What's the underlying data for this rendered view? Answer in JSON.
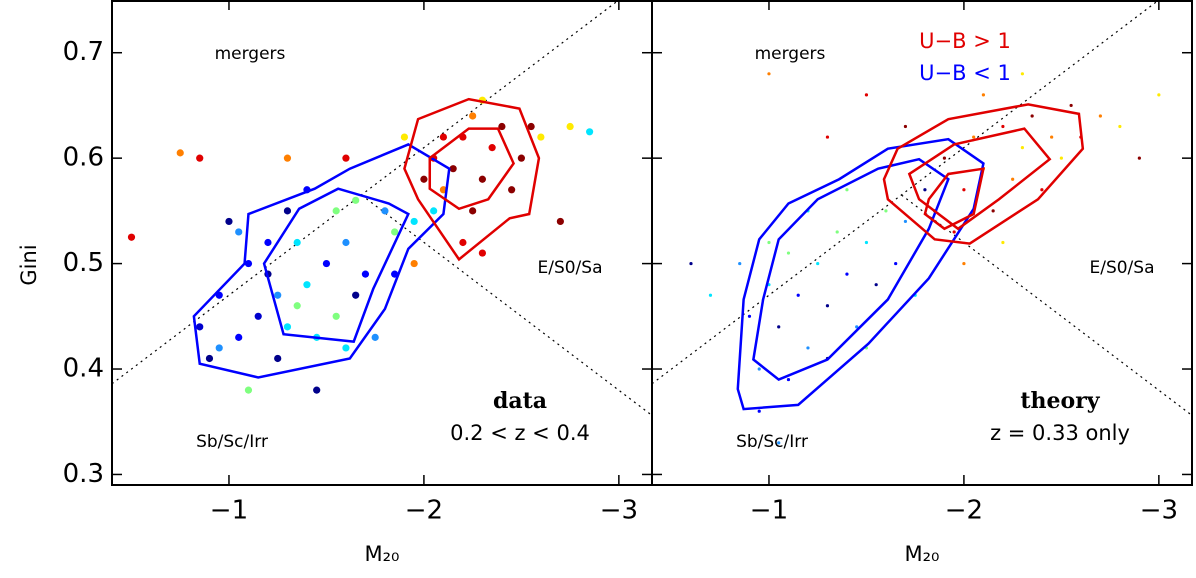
{
  "chart_data": [
    {
      "type": "scatter",
      "ylabel": "Gini",
      "xlabel": "M₂₀",
      "xlim": [
        -0.4,
        -3.17
      ],
      "ylim": [
        0.29,
        0.75
      ],
      "xticks": [
        {
          "value": -1,
          "label": "−1"
        },
        {
          "value": -2,
          "label": "−2"
        },
        {
          "value": -3,
          "label": "−3"
        }
      ],
      "yticks": [
        0.3,
        0.4,
        0.5,
        0.6,
        0.7
      ],
      "annotations": [
        "mergers",
        "E/S0/Sa",
        "Sb/Sc/Irr",
        "data",
        "0.2 < z < 0.4"
      ],
      "series": [
        {
          "type": "line",
          "color": "#000000",
          "dash": true,
          "x": [
            -0.4,
            -3.0
          ],
          "y": [
            0.386,
            0.75
          ]
        },
        {
          "type": "line",
          "color": "#000000",
          "dash": true,
          "x": [
            -1.68,
            -3.17
          ],
          "y": [
            0.565,
            0.356
          ]
        },
        {
          "type": "scatter",
          "x": [
            -0.85,
            -0.9,
            -0.95,
            -1.05,
            -1.0,
            -1.1,
            -1.2,
            -1.25,
            -1.3,
            -1.35,
            -1.4,
            -1.45,
            -1.5,
            -1.55,
            -1.6,
            -1.65,
            -1.7,
            -1.75,
            -1.4,
            -1.3,
            -1.55,
            -1.8,
            -1.85,
            -1.2,
            -1.05,
            -1.15,
            -1.25,
            -1.45,
            -1.6,
            -1.95,
            -0.95,
            -1.35,
            -1.1,
            -1.65,
            -1.85,
            -2.0,
            -2.05,
            -2.1,
            -2.15,
            -2.2,
            -2.25,
            -2.3,
            -2.35,
            -2.4,
            -2.45,
            -2.5,
            -2.55,
            -2.25,
            -2.6,
            -2.75,
            -2.85,
            -2.7,
            -2.1,
            -1.95,
            -2.2,
            -2.05,
            -1.6,
            -1.3,
            -0.85,
            -0.75,
            -0.5,
            -2.3,
            -1.9,
            -2.3
          ],
          "y": [
            0.44,
            0.41,
            0.42,
            0.43,
            0.54,
            0.5,
            0.49,
            0.47,
            0.44,
            0.46,
            0.48,
            0.43,
            0.5,
            0.45,
            0.52,
            0.47,
            0.49,
            0.43,
            0.57,
            0.55,
            0.55,
            0.55,
            0.53,
            0.52,
            0.53,
            0.45,
            0.41,
            0.38,
            0.42,
            0.54,
            0.47,
            0.52,
            0.38,
            0.56,
            0.49,
            0.58,
            0.6,
            0.57,
            0.59,
            0.62,
            0.55,
            0.58,
            0.61,
            0.63,
            0.57,
            0.6,
            0.63,
            0.64,
            0.62,
            0.63,
            0.625,
            0.54,
            0.62,
            0.5,
            0.52,
            0.55,
            0.6,
            0.6,
            0.6,
            0.605,
            0.525,
            0.51,
            0.62,
            0.655
          ],
          "colors": [
            "#0000cd",
            "#00008b",
            "#1e90ff",
            "#0000ff",
            "#00008b",
            "#0000ff",
            "#00008b",
            "#1e90ff",
            "#00e5ff",
            "#7fff7f",
            "#00e5ff",
            "#00e5ff",
            "#0000ff",
            "#7fff7f",
            "#1e90ff",
            "#00008b",
            "#0000ff",
            "#1e90ff",
            "#0000ff",
            "#00008b",
            "#7fff7f",
            "#1e90ff",
            "#7fff7f",
            "#0000ff",
            "#1e90ff",
            "#0000cd",
            "#00008b",
            "#00008b",
            "#00e5ff",
            "#00e5ff",
            "#0000ff",
            "#00e5ff",
            "#7fff7f",
            "#7fff7f",
            "#0000ff",
            "#8b0000",
            "#e00000",
            "#ff7f00",
            "#8b0000",
            "#e00000",
            "#8b0000",
            "#8b0000",
            "#e00000",
            "#8b0000",
            "#8b0000",
            "#8b0000",
            "#8b0000",
            "#ff7f00",
            "#ffea00",
            "#ffea00",
            "#00e5ff",
            "#8b0000",
            "#e00000",
            "#ff7f00",
            "#e00000",
            "#00e5ff",
            "#e00000",
            "#ff7f00",
            "#e00000",
            "#ff7f00",
            "#e00000",
            "#e00000",
            "#ffea00",
            "#ffea00"
          ]
        },
        {
          "type": "line",
          "color": "#0000ff",
          "closed": true,
          "x": [
            -0.82,
            -0.85,
            -1.15,
            -1.62,
            -1.8,
            -1.92,
            -2.1,
            -2.13,
            -1.92,
            -1.62,
            -1.44,
            -1.1,
            -1.08
          ],
          "y": [
            0.45,
            0.405,
            0.392,
            0.41,
            0.457,
            0.514,
            0.547,
            0.59,
            0.613,
            0.59,
            0.571,
            0.547,
            0.5
          ]
        },
        {
          "type": "line",
          "color": "#0000ff",
          "closed": true,
          "x": [
            -1.18,
            -1.28,
            -1.64,
            -1.74,
            -1.92,
            -1.82,
            -1.56,
            -1.36
          ],
          "y": [
            0.5,
            0.433,
            0.426,
            0.476,
            0.547,
            0.557,
            0.571,
            0.552
          ]
        },
        {
          "type": "line",
          "color": "#e00000",
          "closed": true,
          "x": [
            -1.97,
            -2.23,
            -2.49,
            -2.59,
            -2.54,
            -2.44,
            -2.18,
            -1.97,
            -1.9
          ],
          "y": [
            0.637,
            0.656,
            0.647,
            0.6,
            0.547,
            0.543,
            0.504,
            0.561,
            0.59
          ]
        },
        {
          "type": "line",
          "color": "#e00000",
          "closed": true,
          "x": [
            -2.03,
            -2.23,
            -2.38,
            -2.46,
            -2.33,
            -2.18,
            -2.03
          ],
          "y": [
            0.6,
            0.628,
            0.628,
            0.595,
            0.561,
            0.552,
            0.571
          ]
        }
      ]
    },
    {
      "type": "scatter",
      "xlabel": "M₂₀",
      "xlim": [
        -0.4,
        -3.17
      ],
      "ylim": [
        0.29,
        0.75
      ],
      "xticks": [
        {
          "value": -1,
          "label": "−1"
        },
        {
          "value": -2,
          "label": "−2"
        },
        {
          "value": -3,
          "label": "−3"
        }
      ],
      "yticks": [
        0.3,
        0.4,
        0.5,
        0.6,
        0.7
      ],
      "annotations": [
        "mergers",
        "E/S0/Sa",
        "Sb/Sc/Irr",
        "theory",
        "z = 0.33 only",
        "U−B > 1",
        "U−B < 1"
      ],
      "series": [
        {
          "type": "line",
          "color": "#000000",
          "dash": true,
          "x": [
            -0.4,
            -3.0
          ],
          "y": [
            0.386,
            0.75
          ]
        },
        {
          "type": "line",
          "color": "#000000",
          "dash": true,
          "x": [
            -1.68,
            -3.17
          ],
          "y": [
            0.565,
            0.356
          ]
        },
        {
          "type": "scatter",
          "size": "small",
          "x": [
            -0.9,
            -0.95,
            -1.0,
            -1.05,
            -1.1,
            -1.15,
            -1.2,
            -1.25,
            -1.3,
            -1.35,
            -1.4,
            -1.45,
            -1.5,
            -1.55,
            -1.6,
            -1.65,
            -1.7,
            -1.75,
            -1.8,
            -1.0,
            -1.1,
            -0.85,
            -1.2,
            -1.3,
            -1.4,
            -0.95,
            -1.05,
            -0.7,
            -0.6,
            -1.5,
            -1.9,
            -2.0,
            -2.05,
            -2.1,
            -2.15,
            -2.2,
            -2.25,
            -2.3,
            -2.35,
            -2.4,
            -2.45,
            -2.5,
            -2.55,
            -2.6,
            -2.7,
            -2.8,
            -1.85,
            -1.95,
            -2.1,
            -2.3,
            -1.7,
            -1.5,
            -2.0,
            -2.2,
            -2.9,
            -1.3,
            -1.0,
            -3.0
          ],
          "y": [
            0.45,
            0.4,
            0.48,
            0.44,
            0.51,
            0.47,
            0.42,
            0.5,
            0.46,
            0.53,
            0.49,
            0.44,
            0.52,
            0.48,
            0.55,
            0.5,
            0.54,
            0.47,
            0.57,
            0.52,
            0.39,
            0.5,
            0.55,
            0.41,
            0.57,
            0.36,
            0.33,
            0.47,
            0.5,
            0.42,
            0.6,
            0.57,
            0.62,
            0.59,
            0.55,
            0.63,
            0.58,
            0.61,
            0.64,
            0.57,
            0.62,
            0.6,
            0.65,
            0.62,
            0.64,
            0.63,
            0.55,
            0.53,
            0.66,
            0.68,
            0.63,
            0.66,
            0.5,
            0.52,
            0.6,
            0.62,
            0.68,
            0.66
          ],
          "colors": [
            "#0000ff",
            "#1e90ff",
            "#00e5ff",
            "#00008b",
            "#7fff7f",
            "#0000ff",
            "#1e90ff",
            "#00e5ff",
            "#00008b",
            "#7fff7f",
            "#0000ff",
            "#1e90ff",
            "#00e5ff",
            "#00008b",
            "#7fff7f",
            "#0000ff",
            "#1e90ff",
            "#00e5ff",
            "#00008b",
            "#7fff7f",
            "#0000ff",
            "#1e90ff",
            "#00e5ff",
            "#00008b",
            "#7fff7f",
            "#0000ff",
            "#1e90ff",
            "#00e5ff",
            "#00008b",
            "#7fff7f",
            "#8b0000",
            "#e00000",
            "#ff7f00",
            "#ffea00",
            "#8b0000",
            "#e00000",
            "#ff7f00",
            "#ffea00",
            "#8b0000",
            "#e00000",
            "#ff7f00",
            "#ffea00",
            "#8b0000",
            "#e00000",
            "#ff7f00",
            "#ffea00",
            "#8b0000",
            "#e00000",
            "#ff7f00",
            "#ffea00",
            "#8b0000",
            "#e00000",
            "#ff7f00",
            "#ffea00",
            "#8b0000",
            "#e00000",
            "#ff7f00",
            "#ffea00"
          ]
        },
        {
          "type": "line",
          "color": "#0000ff",
          "closed": true,
          "x": [
            -0.84,
            -0.87,
            -1.15,
            -1.51,
            -1.82,
            -2.05,
            -2.1,
            -1.92,
            -1.61,
            -1.36,
            -1.1,
            -0.95,
            -0.87
          ],
          "y": [
            0.381,
            0.362,
            0.366,
            0.424,
            0.486,
            0.552,
            0.595,
            0.618,
            0.609,
            0.58,
            0.557,
            0.523,
            0.466
          ]
        },
        {
          "type": "line",
          "color": "#0000ff",
          "closed": true,
          "x": [
            -0.92,
            -1.05,
            -1.3,
            -1.61,
            -1.82,
            -1.92,
            -1.77,
            -1.56,
            -1.25,
            -1.05,
            -0.97
          ],
          "y": [
            0.409,
            0.39,
            0.409,
            0.466,
            0.533,
            0.58,
            0.599,
            0.59,
            0.561,
            0.523,
            0.466
          ]
        },
        {
          "type": "line",
          "color": "#e00000",
          "closed": true,
          "x": [
            -1.66,
            -1.92,
            -2.33,
            -2.59,
            -2.61,
            -2.38,
            -2.03,
            -1.85,
            -1.61,
            -1.59
          ],
          "y": [
            0.609,
            0.637,
            0.651,
            0.642,
            0.609,
            0.561,
            0.519,
            0.523,
            0.561,
            0.58
          ]
        },
        {
          "type": "line",
          "color": "#e00000",
          "closed": true,
          "x": [
            -1.72,
            -1.95,
            -2.31,
            -2.44,
            -2.18,
            -1.97,
            -1.77
          ],
          "y": [
            0.585,
            0.613,
            0.628,
            0.599,
            0.561,
            0.533,
            0.561
          ]
        },
        {
          "type": "line",
          "color": "#e00000",
          "closed": true,
          "x": [
            -1.82,
            -1.92,
            -2.1,
            -2.05,
            -1.9,
            -1.8
          ],
          "y": [
            0.561,
            0.585,
            0.59,
            0.547,
            0.533,
            0.547
          ]
        }
      ]
    }
  ]
}
